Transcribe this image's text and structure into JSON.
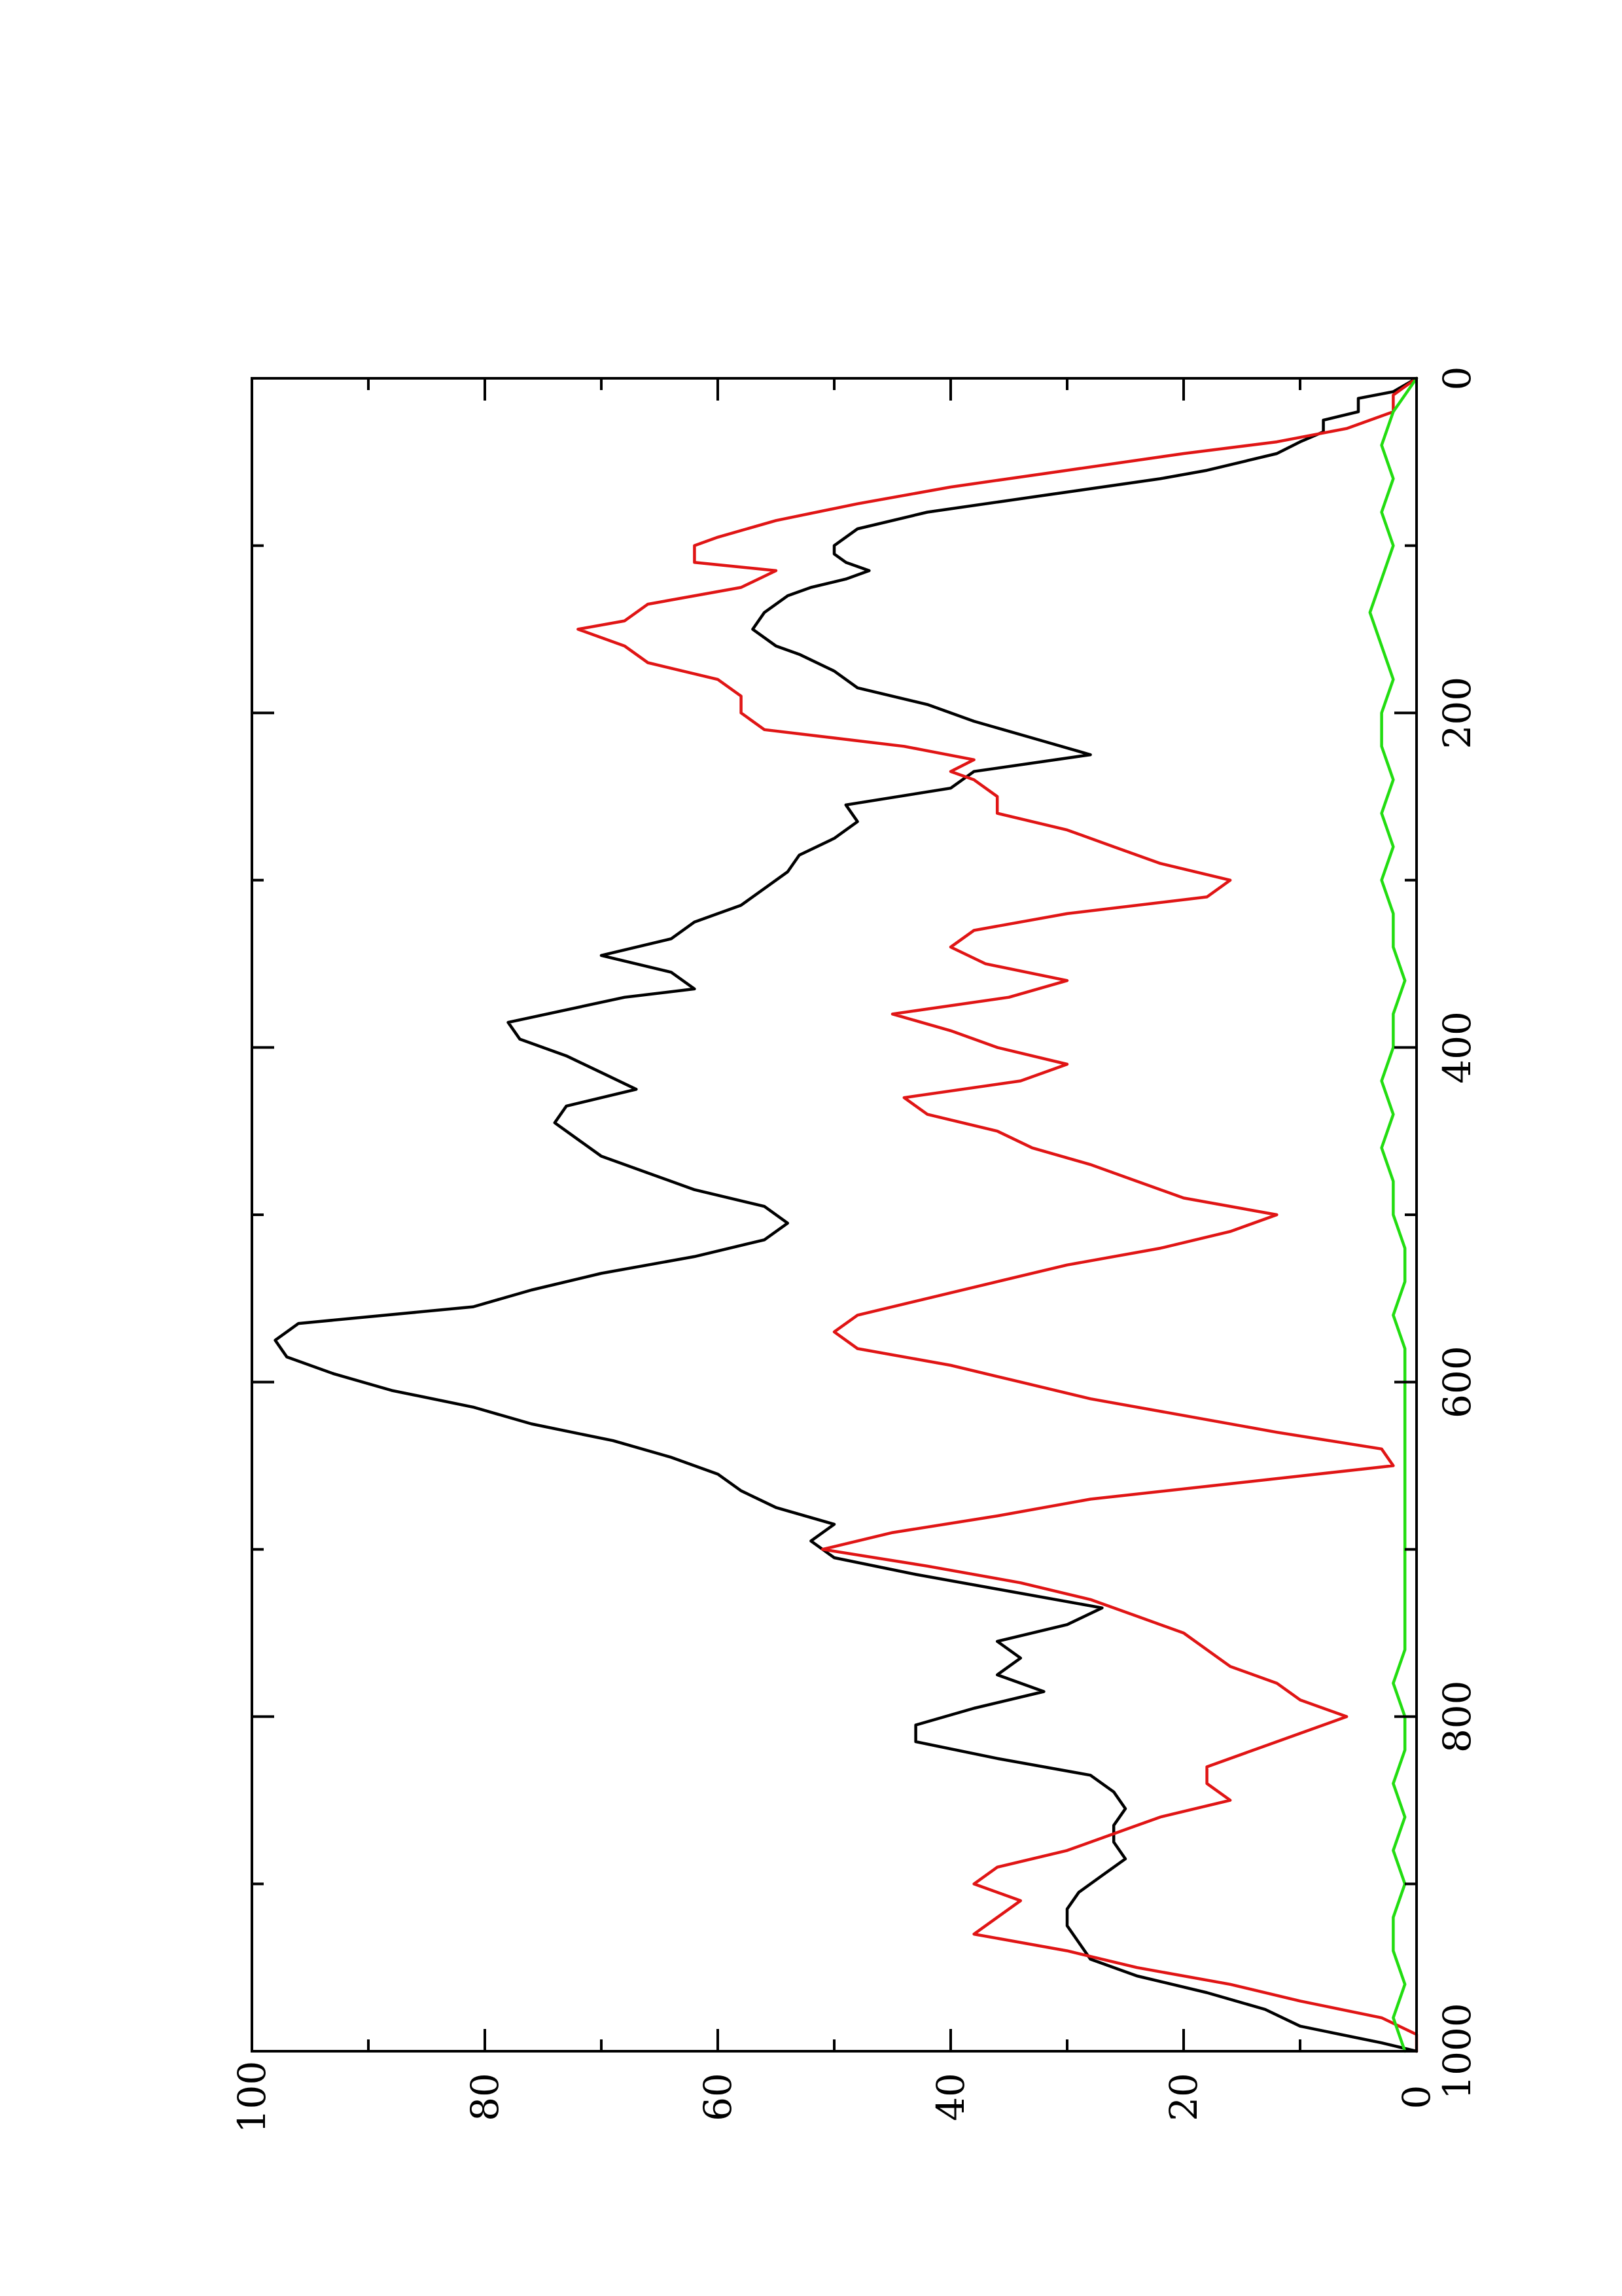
{
  "chart_data": {
    "type": "line",
    "title": "",
    "xlabel": "",
    "ylabel": "",
    "orientation": "rotated-90-ccw",
    "xlim": [
      0,
      1000
    ],
    "ylim": [
      0,
      100
    ],
    "x_ticks": [
      0,
      200,
      400,
      600,
      800,
      1000
    ],
    "x_tick_labels": [
      "0",
      "200",
      "400",
      "600",
      "800",
      "1000"
    ],
    "x_minor_ticks": [
      100,
      300,
      500,
      700,
      900
    ],
    "y_ticks": [
      0,
      20,
      40,
      60,
      80,
      100
    ],
    "y_tick_labels": [
      "0",
      "20",
      "40",
      "60",
      "80",
      "100"
    ],
    "y_minor_ticks": [
      10,
      30,
      50,
      70,
      90
    ],
    "grid": false,
    "legend": "none",
    "series": [
      {
        "color": "#000000",
        "x": [
          0,
          8,
          12,
          20,
          25,
          32,
          38,
          45,
          55,
          60,
          70,
          80,
          90,
          100,
          105,
          110,
          115,
          120,
          125,
          130,
          140,
          150,
          160,
          165,
          175,
          185,
          195,
          205,
          215,
          225,
          235,
          245,
          255,
          265,
          275,
          285,
          295,
          305,
          315,
          325,
          335,
          345,
          355,
          365,
          370,
          385,
          395,
          405,
          415,
          425,
          435,
          445,
          455,
          465,
          475,
          485,
          495,
          505,
          515,
          525,
          535,
          545,
          555,
          565,
          575,
          585,
          595,
          605,
          615,
          625,
          635,
          645,
          655,
          665,
          675,
          685,
          695,
          705,
          715,
          725,
          735,
          745,
          755,
          765,
          775,
          785,
          795,
          805,
          815,
          825,
          835,
          845,
          855,
          865,
          875,
          885,
          895,
          905,
          915,
          925,
          935,
          945,
          955,
          965,
          975,
          985,
          995,
          1000
        ],
        "y": [
          0,
          2,
          5,
          5,
          8,
          8,
          10,
          12,
          18,
          22,
          32,
          42,
          48,
          50,
          50,
          49,
          47,
          49,
          52,
          54,
          56,
          57,
          55,
          53,
          50,
          48,
          42,
          38,
          33,
          28,
          38,
          40,
          49,
          48,
          50,
          53,
          54,
          56,
          58,
          62,
          64,
          70,
          64,
          62,
          68,
          78,
          77,
          73,
          70,
          67,
          73,
          74,
          72,
          70,
          66,
          62,
          56,
          54,
          56,
          62,
          70,
          76,
          81,
          96,
          98,
          97,
          93,
          88,
          81,
          76,
          69,
          64,
          60,
          58,
          55,
          50,
          52,
          50,
          43,
          35,
          27,
          30,
          36,
          34,
          36,
          32,
          38,
          43,
          43,
          36,
          28,
          26,
          25,
          26,
          26,
          25,
          27,
          29,
          30,
          30,
          29,
          28,
          24,
          18,
          13,
          10,
          3,
          0
        ]
      },
      {
        "color": "#e01515",
        "x": [
          0,
          10,
          20,
          30,
          38,
          45,
          55,
          65,
          75,
          85,
          95,
          100,
          110,
          115,
          125,
          135,
          145,
          150,
          160,
          170,
          180,
          190,
          200,
          210,
          220,
          228,
          235,
          240,
          250,
          260,
          270,
          280,
          290,
          300,
          310,
          320,
          330,
          340,
          350,
          360,
          370,
          380,
          390,
          400,
          410,
          420,
          430,
          440,
          450,
          460,
          470,
          480,
          490,
          500,
          510,
          520,
          530,
          540,
          550,
          560,
          570,
          580,
          590,
          600,
          610,
          620,
          630,
          640,
          650,
          660,
          670,
          680,
          690,
          700,
          710,
          720,
          730,
          740,
          750,
          760,
          770,
          780,
          790,
          800,
          810,
          820,
          830,
          840,
          850,
          860,
          870,
          880,
          890,
          900,
          910,
          920,
          930,
          940,
          950,
          960,
          970,
          980,
          990,
          1000
        ],
        "y": [
          0,
          2,
          2,
          6,
          12,
          20,
          30,
          40,
          48,
          55,
          60,
          62,
          62,
          55,
          58,
          66,
          68,
          72,
          68,
          66,
          60,
          58,
          58,
          56,
          44,
          38,
          40,
          38,
          36,
          36,
          30,
          26,
          22,
          16,
          18,
          30,
          38,
          40,
          37,
          30,
          35,
          45,
          40,
          36,
          30,
          34,
          44,
          42,
          36,
          33,
          28,
          24,
          20,
          12,
          16,
          22,
          30,
          36,
          42,
          48,
          50,
          48,
          40,
          34,
          28,
          20,
          12,
          3,
          2,
          15,
          28,
          36,
          45,
          51,
          42,
          34,
          28,
          24,
          20,
          18,
          16,
          12,
          10,
          6,
          10,
          14,
          18,
          18,
          16,
          22,
          26,
          30,
          36,
          38,
          34,
          36,
          38,
          30,
          24,
          16,
          10,
          3,
          0,
          0
        ]
      },
      {
        "color": "#22dd11",
        "x": [
          0,
          20,
          40,
          60,
          80,
          100,
          120,
          140,
          160,
          180,
          200,
          220,
          240,
          260,
          280,
          300,
          320,
          340,
          360,
          380,
          400,
          420,
          440,
          460,
          480,
          500,
          520,
          540,
          560,
          580,
          600,
          620,
          640,
          660,
          680,
          700,
          720,
          740,
          760,
          780,
          800,
          820,
          840,
          860,
          880,
          900,
          920,
          940,
          960,
          980,
          1000
        ],
        "y": [
          0,
          2,
          3,
          2,
          3,
          2,
          3,
          4,
          3,
          2,
          3,
          3,
          2,
          3,
          2,
          3,
          2,
          2,
          1,
          2,
          2,
          3,
          2,
          3,
          2,
          2,
          1,
          1,
          2,
          1,
          1,
          1,
          1,
          1,
          1,
          1,
          1,
          1,
          1,
          2,
          1,
          1,
          2,
          1,
          2,
          1,
          2,
          2,
          1,
          2,
          1
        ]
      }
    ]
  }
}
